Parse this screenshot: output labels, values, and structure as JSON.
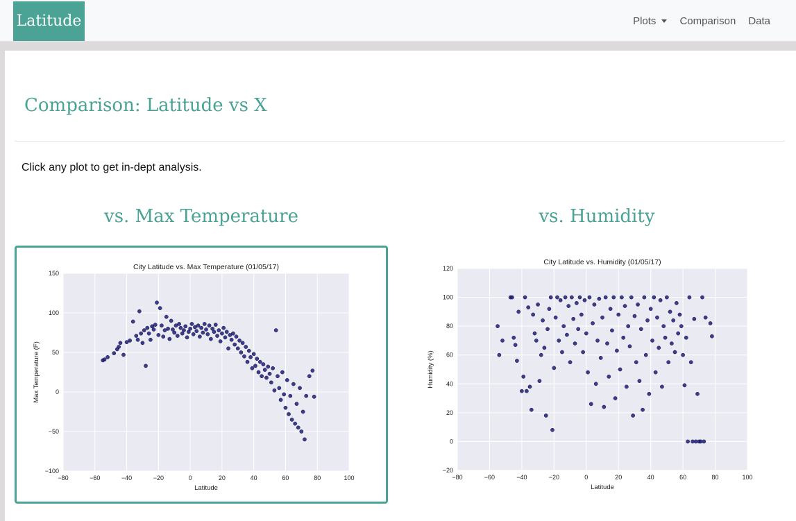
{
  "brand": "Latitude",
  "nav": {
    "plots": "Plots",
    "comparison": "Comparison",
    "data": "Data"
  },
  "page": {
    "title": "Comparison: Latitude vs X",
    "lead": "Click any plot to get in-dept analysis."
  },
  "colors": {
    "accent": "#4aa394",
    "plot_bg": "#eaeaf2",
    "point": "#1f1f7a"
  },
  "plots": [
    {
      "heading": "vs. Max Temperature"
    },
    {
      "heading": "vs. Humidity"
    }
  ],
  "chart_data": [
    {
      "type": "scatter",
      "title": "City Latitude vs. Max Temperature (01/05/17)",
      "xlabel": "Latitude",
      "ylabel": "Max Temperature (F)",
      "xlim": [
        -80,
        100
      ],
      "ylim": [
        -100,
        150
      ],
      "xticks": [
        -80,
        -60,
        -40,
        -20,
        0,
        20,
        40,
        60,
        80,
        100
      ],
      "yticks": [
        -100,
        -50,
        0,
        50,
        100,
        150
      ],
      "grid": true,
      "points": [
        [
          -55,
          40
        ],
        [
          -54,
          41
        ],
        [
          -52,
          44
        ],
        [
          -48,
          49
        ],
        [
          -46,
          54
        ],
        [
          -45,
          57
        ],
        [
          -44,
          62
        ],
        [
          -42,
          47
        ],
        [
          -40,
          63
        ],
        [
          -38,
          65
        ],
        [
          -36,
          89
        ],
        [
          -34,
          71
        ],
        [
          -33,
          66
        ],
        [
          -32,
          102
        ],
        [
          -31,
          74
        ],
        [
          -30,
          62
        ],
        [
          -29,
          78
        ],
        [
          -28,
          33
        ],
        [
          -27,
          81
        ],
        [
          -26,
          74
        ],
        [
          -25,
          66
        ],
        [
          -24,
          83
        ],
        [
          -23,
          79
        ],
        [
          -22,
          85
        ],
        [
          -21,
          113
        ],
        [
          -20,
          72
        ],
        [
          -19,
          106
        ],
        [
          -18,
          84
        ],
        [
          -17,
          70
        ],
        [
          -16,
          78
        ],
        [
          -15,
          95
        ],
        [
          -14,
          80
        ],
        [
          -13,
          67
        ],
        [
          -12,
          90
        ],
        [
          -11,
          79
        ],
        [
          -10,
          75
        ],
        [
          -9,
          84
        ],
        [
          -8,
          71
        ],
        [
          -7,
          86
        ],
        [
          -6,
          81
        ],
        [
          -5,
          74
        ],
        [
          -4,
          78
        ],
        [
          -3,
          83
        ],
        [
          -2,
          69
        ],
        [
          -1,
          76
        ],
        [
          0,
          80
        ],
        [
          1,
          86
        ],
        [
          2,
          73
        ],
        [
          3,
          82
        ],
        [
          4,
          77
        ],
        [
          5,
          84
        ],
        [
          6,
          70
        ],
        [
          7,
          81
        ],
        [
          8,
          75
        ],
        [
          9,
          86
        ],
        [
          10,
          79
        ],
        [
          11,
          73
        ],
        [
          12,
          84
        ],
        [
          13,
          67
        ],
        [
          14,
          80
        ],
        [
          15,
          76
        ],
        [
          16,
          85
        ],
        [
          17,
          71
        ],
        [
          18,
          78
        ],
        [
          19,
          64
        ],
        [
          20,
          74
        ],
        [
          21,
          81
        ],
        [
          22,
          69
        ],
        [
          23,
          76
        ],
        [
          24,
          55
        ],
        [
          25,
          72
        ],
        [
          26,
          66
        ],
        [
          27,
          74
        ],
        [
          28,
          60
        ],
        [
          29,
          70
        ],
        [
          30,
          55
        ],
        [
          31,
          65
        ],
        [
          32,
          50
        ],
        [
          33,
          62
        ],
        [
          34,
          45
        ],
        [
          35,
          57
        ],
        [
          36,
          38
        ],
        [
          37,
          52
        ],
        [
          38,
          44
        ],
        [
          39,
          30
        ],
        [
          40,
          48
        ],
        [
          41,
          33
        ],
        [
          42,
          42
        ],
        [
          43,
          25
        ],
        [
          44,
          38
        ],
        [
          45,
          20
        ],
        [
          46,
          35
        ],
        [
          47,
          28
        ],
        [
          48,
          18
        ],
        [
          49,
          32
        ],
        [
          50,
          23
        ],
        [
          51,
          12
        ],
        [
          52,
          30
        ],
        [
          53,
          2
        ],
        [
          54,
          78
        ],
        [
          55,
          20
        ],
        [
          56,
          5
        ],
        [
          57,
          -10
        ],
        [
          58,
          25
        ],
        [
          59,
          -3
        ],
        [
          60,
          -20
        ],
        [
          61,
          15
        ],
        [
          62,
          -28
        ],
        [
          63,
          -5
        ],
        [
          64,
          -35
        ],
        [
          65,
          10
        ],
        [
          66,
          -40
        ],
        [
          67,
          -15
        ],
        [
          68,
          -45
        ],
        [
          69,
          5
        ],
        [
          70,
          -50
        ],
        [
          71,
          -25
        ],
        [
          72,
          -60
        ],
        [
          73,
          -5
        ],
        [
          75,
          20
        ],
        [
          77,
          27
        ],
        [
          78,
          -6
        ]
      ]
    },
    {
      "type": "scatter",
      "title": "City Latitude vs. Humidity (01/05/17)",
      "xlabel": "Latitude",
      "ylabel": "Humidity (%)",
      "xlim": [
        -80,
        100
      ],
      "ylim": [
        -20,
        120
      ],
      "xticks": [
        -80,
        -60,
        -40,
        -20,
        0,
        20,
        40,
        60,
        80,
        100
      ],
      "yticks": [
        -20,
        0,
        20,
        40,
        60,
        80,
        100,
        120
      ],
      "grid": true,
      "points": [
        [
          -55,
          80
        ],
        [
          -54,
          60
        ],
        [
          -52,
          70
        ],
        [
          -47,
          100
        ],
        [
          -46,
          100
        ],
        [
          -45,
          72
        ],
        [
          -44,
          67
        ],
        [
          -43,
          56
        ],
        [
          -42,
          90
        ],
        [
          -40,
          35
        ],
        [
          -39,
          45
        ],
        [
          -38,
          100
        ],
        [
          -37,
          35
        ],
        [
          -36,
          93
        ],
        [
          -35,
          38
        ],
        [
          -34,
          22
        ],
        [
          -33,
          88
        ],
        [
          -32,
          75
        ],
        [
          -31,
          70
        ],
        [
          -30,
          95
        ],
        [
          -29,
          42
        ],
        [
          -28,
          60
        ],
        [
          -27,
          84
        ],
        [
          -26,
          65
        ],
        [
          -25,
          18
        ],
        [
          -24,
          78
        ],
        [
          -23,
          92
        ],
        [
          -22,
          100
        ],
        [
          -21,
          8
        ],
        [
          -20,
          51
        ],
        [
          -19,
          86
        ],
        [
          -18,
          100
        ],
        [
          -17,
          70
        ],
        [
          -16,
          98
        ],
        [
          -15,
          62
        ],
        [
          -14,
          80
        ],
        [
          -13,
          100
        ],
        [
          -12,
          74
        ],
        [
          -11,
          94
        ],
        [
          -10,
          55
        ],
        [
          -9,
          100
        ],
        [
          -8,
          85
        ],
        [
          -7,
          68
        ],
        [
          -6,
          96
        ],
        [
          -5,
          78
        ],
        [
          -4,
          100
        ],
        [
          -3,
          88
        ],
        [
          -2,
          62
        ],
        [
          -1,
          98
        ],
        [
          0,
          75
        ],
        [
          1,
          48
        ],
        [
          2,
          100
        ],
        [
          3,
          26
        ],
        [
          4,
          82
        ],
        [
          5,
          95
        ],
        [
          6,
          40
        ],
        [
          7,
          70
        ],
        [
          8,
          99
        ],
        [
          9,
          58
        ],
        [
          10,
          86
        ],
        [
          11,
          24
        ],
        [
          12,
          100
        ],
        [
          13,
          68
        ],
        [
          14,
          45
        ],
        [
          15,
          92
        ],
        [
          16,
          77
        ],
        [
          17,
          100
        ],
        [
          18,
          30
        ],
        [
          19,
          63
        ],
        [
          20,
          88
        ],
        [
          21,
          50
        ],
        [
          22,
          100
        ],
        [
          23,
          72
        ],
        [
          24,
          94
        ],
        [
          25,
          38
        ],
        [
          26,
          80
        ],
        [
          27,
          66
        ],
        [
          28,
          100
        ],
        [
          29,
          18
        ],
        [
          30,
          87
        ],
        [
          31,
          55
        ],
        [
          32,
          95
        ],
        [
          33,
          42
        ],
        [
          34,
          78
        ],
        [
          35,
          22
        ],
        [
          36,
          100
        ],
        [
          37,
          60
        ],
        [
          38,
          84
        ],
        [
          39,
          33
        ],
        [
          40,
          92
        ],
        [
          41,
          70
        ],
        [
          42,
          100
        ],
        [
          43,
          48
        ],
        [
          44,
          86
        ],
        [
          45,
          65
        ],
        [
          46,
          98
        ],
        [
          47,
          38
        ],
        [
          48,
          80
        ],
        [
          49,
          72
        ],
        [
          50,
          100
        ],
        [
          51,
          55
        ],
        [
          52,
          90
        ],
        [
          53,
          68
        ],
        [
          54,
          84
        ],
        [
          55,
          62
        ],
        [
          56,
          96
        ],
        [
          57,
          75
        ],
        [
          58,
          88
        ],
        [
          59,
          80
        ],
        [
          60,
          60
        ],
        [
          61,
          39
        ],
        [
          62,
          72
        ],
        [
          63,
          0
        ],
        [
          64,
          100
        ],
        [
          65,
          55
        ],
        [
          66,
          0
        ],
        [
          67,
          85
        ],
        [
          68,
          0
        ],
        [
          69,
          33
        ],
        [
          70,
          0
        ],
        [
          71,
          0
        ],
        [
          72,
          100
        ],
        [
          73,
          0
        ],
        [
          74,
          86
        ],
        [
          77,
          82
        ],
        [
          78,
          73
        ]
      ]
    }
  ]
}
